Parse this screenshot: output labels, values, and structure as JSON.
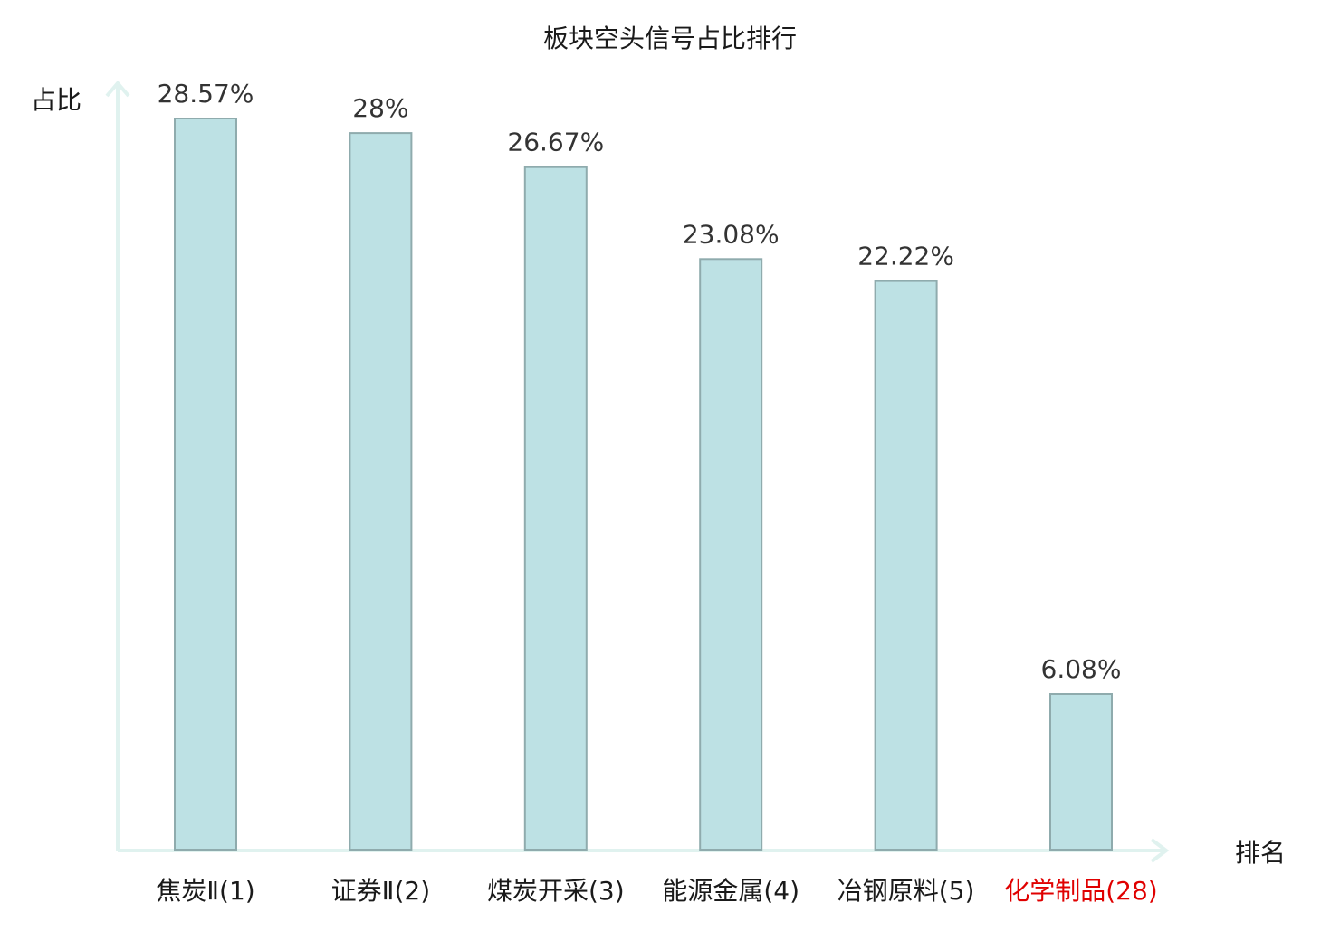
{
  "chart_data": {
    "type": "bar",
    "title": "板块空头信号占比排行",
    "ylabel": "占比",
    "xlabel": "排名",
    "categories": [
      "焦炭Ⅱ(1)",
      "证券Ⅱ(2)",
      "煤炭开采(3)",
      "能源金属(4)",
      "冶钢原料(5)",
      "化学制品(28)"
    ],
    "values": [
      28.57,
      28,
      26.67,
      23.08,
      22.22,
      6.08
    ],
    "value_labels": [
      "28.57%",
      "28%",
      "26.67%",
      "23.08%",
      "22.22%",
      "6.08%"
    ],
    "highlight_index": 5,
    "highlight_color": "#e00000",
    "bar_color": "#bde1e4",
    "bar_border_color": "#8fabad",
    "axis_color": "#e0f2ef",
    "ylim": [
      0,
      28.57
    ],
    "grid": false,
    "legend": "none"
  }
}
